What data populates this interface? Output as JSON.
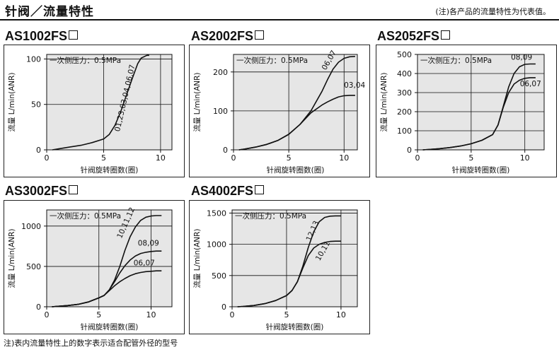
{
  "header": {
    "title": "针阀／流量特性",
    "note": "(注)各产品的流量特性为代表值。"
  },
  "footnote": "注)表内流量特性上的数字表示适合配管外径的型号",
  "chart_data": [
    {
      "type": "line",
      "title": "AS1002FS",
      "pressure_label": "一次侧压力：0.5MPa",
      "xlabel": "针阀旋转圈数(圈)",
      "ylabel": "流量 L/min(ANR)",
      "xlim": [
        0,
        11
      ],
      "ylim": [
        0,
        105
      ],
      "xticks": [
        0,
        5,
        10
      ],
      "yticks": [
        0,
        50,
        100
      ],
      "grid": true,
      "series": [
        {
          "name": "01,23,03,04,06,07",
          "x": [
            0.5,
            1,
            2,
            3,
            4,
            5,
            5.5,
            6,
            6.5,
            7,
            7.5,
            8,
            8.3,
            8.8,
            9
          ],
          "y": [
            0,
            1,
            3,
            5,
            8,
            12,
            17,
            27,
            42,
            60,
            78,
            95,
            101,
            104,
            104
          ]
        }
      ]
    },
    {
      "type": "line",
      "title": "AS2002FS",
      "pressure_label": "一次侧压力：0.5MPa",
      "xlabel": "针阀旋转圈数(圈)",
      "ylabel": "流量 L/min(ANR)",
      "xlim": [
        0,
        11.2
      ],
      "ylim": [
        0,
        245
      ],
      "xticks": [
        0,
        5,
        10
      ],
      "yticks": [
        0,
        100,
        200
      ],
      "grid": true,
      "series": [
        {
          "name": "06,07",
          "x": [
            0.5,
            1,
            2,
            3,
            4,
            5,
            6,
            7,
            8,
            8.5,
            9,
            9.5,
            10,
            10.5,
            11
          ],
          "y": [
            0,
            2,
            7,
            14,
            24,
            40,
            65,
            100,
            150,
            180,
            207,
            225,
            235,
            239,
            240
          ]
        },
        {
          "name": "03,04",
          "x": [
            0.5,
            1,
            2,
            3,
            4,
            5,
            6,
            7,
            8,
            8.5,
            9,
            9.5,
            10,
            10.5,
            11
          ],
          "y": [
            0,
            2,
            7,
            14,
            24,
            40,
            65,
            95,
            115,
            123,
            130,
            136,
            139,
            140,
            140
          ]
        }
      ]
    },
    {
      "type": "line",
      "title": "AS2052FS",
      "pressure_label": "一次侧压力：0.5MPa",
      "xlabel": "针阀旋转圈数(圈)",
      "ylabel": "流量 L/min(ANR)",
      "xlim": [
        0,
        11.8
      ],
      "ylim": [
        0,
        500
      ],
      "xticks": [
        0,
        5,
        10
      ],
      "yticks": [
        0,
        100,
        200,
        300,
        400,
        500
      ],
      "grid": true,
      "series": [
        {
          "name": "08,09",
          "x": [
            0.5,
            1,
            2,
            3,
            4,
            5,
            6,
            7,
            7.5,
            8,
            8.5,
            9,
            9.5,
            10,
            10.5,
            11
          ],
          "y": [
            0,
            2,
            6,
            12,
            20,
            32,
            50,
            80,
            130,
            230,
            330,
            400,
            435,
            448,
            450,
            450
          ]
        },
        {
          "name": "06,07",
          "x": [
            0.5,
            1,
            2,
            3,
            4,
            5,
            6,
            7,
            7.5,
            8,
            8.5,
            9,
            9.5,
            10,
            10.5,
            11
          ],
          "y": [
            0,
            2,
            6,
            12,
            20,
            32,
            50,
            80,
            130,
            225,
            300,
            345,
            365,
            375,
            378,
            378
          ]
        }
      ]
    },
    {
      "type": "line",
      "title": "AS3002FS",
      "pressure_label": "一次侧压力：0.5MPa",
      "xlabel": "针阀旋转圈数(圈)",
      "ylabel": "流量 L/min(ANR)",
      "xlim": [
        0,
        12
      ],
      "ylim": [
        0,
        1200
      ],
      "xticks": [
        0,
        5,
        10
      ],
      "yticks": [
        0,
        500,
        1000
      ],
      "grid": true,
      "series": [
        {
          "name": "10,11,12",
          "x": [
            0.5,
            1,
            2,
            3,
            4,
            5,
            5.5,
            6,
            6.5,
            7,
            7.5,
            8,
            8.5,
            9,
            9.5,
            10,
            10.5,
            11
          ],
          "y": [
            0,
            5,
            15,
            30,
            60,
            110,
            140,
            210,
            330,
            500,
            700,
            870,
            990,
            1070,
            1110,
            1125,
            1130,
            1130
          ]
        },
        {
          "name": "08,09",
          "x": [
            0.5,
            1,
            2,
            3,
            4,
            5,
            5.5,
            6,
            6.5,
            7,
            7.5,
            8,
            8.5,
            9,
            9.5,
            10,
            10.5,
            11
          ],
          "y": [
            0,
            5,
            15,
            30,
            60,
            110,
            140,
            210,
            310,
            420,
            510,
            580,
            630,
            660,
            675,
            685,
            690,
            690
          ]
        },
        {
          "name": "06,07",
          "x": [
            0.5,
            1,
            2,
            3,
            4,
            5,
            5.5,
            6,
            6.5,
            7,
            7.5,
            8,
            8.5,
            9,
            9.5,
            10,
            10.5,
            11
          ],
          "y": [
            0,
            5,
            15,
            30,
            60,
            110,
            140,
            200,
            260,
            310,
            350,
            385,
            410,
            425,
            435,
            440,
            445,
            445
          ]
        }
      ]
    },
    {
      "type": "line",
      "title": "AS4002FS",
      "pressure_label": "一次侧压力：0.5MPa",
      "xlabel": "针阀旋转圈数(圈)",
      "ylabel": "流量 L/min(ANR)",
      "xlim": [
        0,
        11.5
      ],
      "ylim": [
        0,
        1550
      ],
      "xticks": [
        0,
        5,
        10
      ],
      "yticks": [
        0,
        500,
        1000,
        1500
      ],
      "grid": true,
      "series": [
        {
          "name": "12,13",
          "x": [
            0.5,
            1,
            2,
            3,
            4,
            5,
            5.5,
            6,
            6.5,
            7,
            7.5,
            8,
            8.5,
            9,
            9.5,
            10
          ],
          "y": [
            0,
            5,
            20,
            50,
            100,
            180,
            260,
            400,
            650,
            950,
            1200,
            1360,
            1430,
            1450,
            1455,
            1455
          ]
        },
        {
          "name": "10,11",
          "x": [
            0.5,
            1,
            2,
            3,
            4,
            5,
            5.5,
            6,
            6.5,
            7,
            7.5,
            8,
            8.5,
            9,
            9.5,
            10
          ],
          "y": [
            0,
            5,
            20,
            50,
            100,
            180,
            260,
            400,
            620,
            820,
            940,
            1000,
            1030,
            1045,
            1050,
            1050
          ]
        }
      ]
    }
  ]
}
